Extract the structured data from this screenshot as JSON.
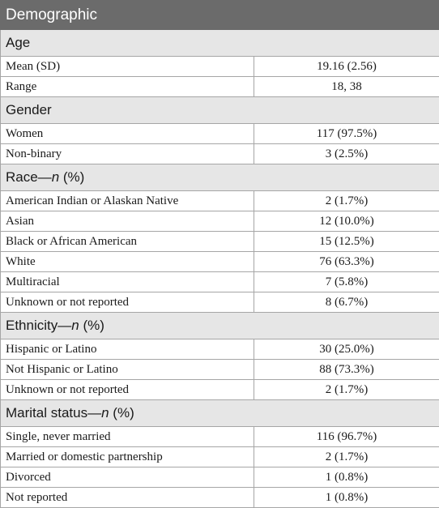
{
  "table": {
    "header": "Demographic",
    "sections": [
      {
        "title": "Age",
        "title_italic": "",
        "title_suffix": "",
        "rows": [
          {
            "label": "Mean (SD)",
            "value": "19.16 (2.56)"
          },
          {
            "label": "Range",
            "value": "18, 38"
          }
        ]
      },
      {
        "title": "Gender",
        "title_italic": "",
        "title_suffix": "",
        "rows": [
          {
            "label": "Women",
            "value": "117 (97.5%)"
          },
          {
            "label": "Non-binary",
            "value": "3 (2.5%)"
          }
        ]
      },
      {
        "title": "Race—",
        "title_italic": "n",
        "title_suffix": " (%)",
        "rows": [
          {
            "label": "American Indian or Alaskan Native",
            "value": "2 (1.7%)"
          },
          {
            "label": "Asian",
            "value": "12 (10.0%)"
          },
          {
            "label": "Black or African American",
            "value": "15 (12.5%)"
          },
          {
            "label": "White",
            "value": "76 (63.3%)"
          },
          {
            "label": "Multiracial",
            "value": "7 (5.8%)"
          },
          {
            "label": "Unknown or not reported",
            "value": "8 (6.7%)"
          }
        ]
      },
      {
        "title": "Ethnicity—",
        "title_italic": "n",
        "title_suffix": " (%)",
        "rows": [
          {
            "label": "Hispanic or Latino",
            "value": "30 (25.0%)"
          },
          {
            "label": "Not Hispanic or Latino",
            "value": "88 (73.3%)"
          },
          {
            "label": "Unknown or not reported",
            "value": "2 (1.7%)"
          }
        ]
      },
      {
        "title": "Marital status—",
        "title_italic": "n",
        "title_suffix": " (%)",
        "rows": [
          {
            "label": "Single, never married",
            "value": "116 (96.7%)"
          },
          {
            "label": "Married or domestic partnership",
            "value": "2 (1.7%)"
          },
          {
            "label": "Divorced",
            "value": "1 (0.8%)"
          },
          {
            "label": "Not reported",
            "value": "1 (0.8%)"
          }
        ]
      }
    ]
  }
}
